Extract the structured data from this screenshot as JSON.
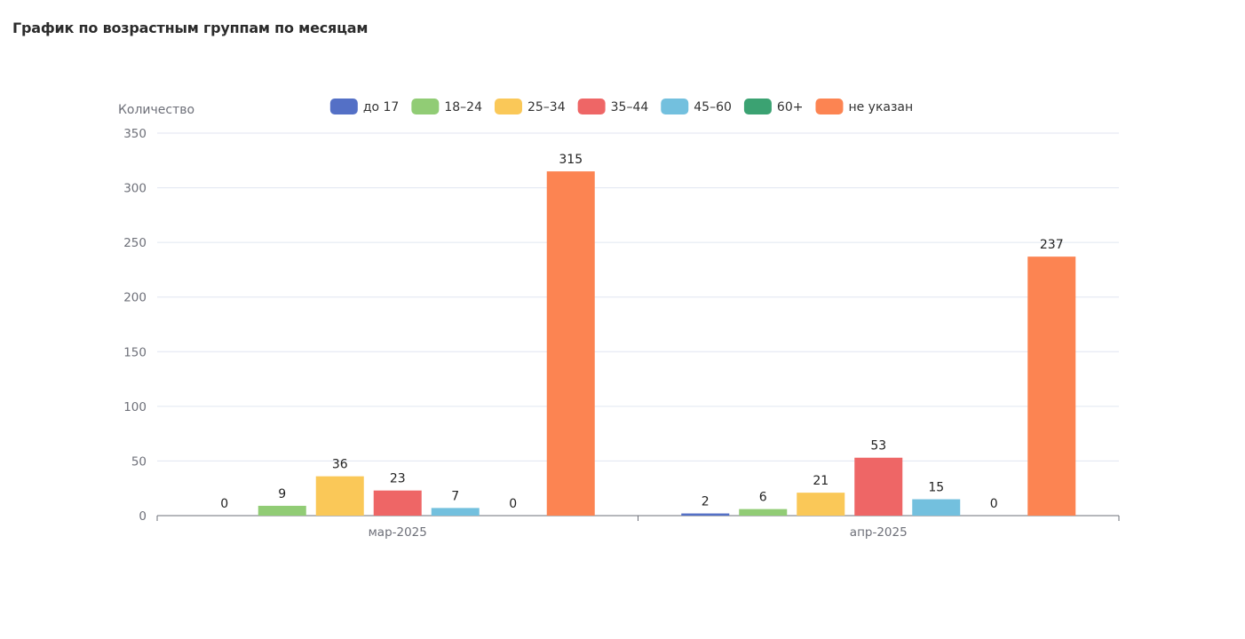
{
  "page": {
    "title": "График по возрастным группам по месяцам"
  },
  "chart_data": {
    "type": "bar",
    "title": "",
    "xlabel": "",
    "ylabel": "Количество",
    "ylim": [
      0,
      350
    ],
    "yticks": [
      0,
      50,
      100,
      150,
      200,
      250,
      300,
      350
    ],
    "grid": true,
    "legend_position": "top",
    "categories": [
      "мар-2025",
      "апр-2025"
    ],
    "series": [
      {
        "name": "до 17",
        "color": "#5470c6",
        "values": [
          0,
          2
        ]
      },
      {
        "name": "18–24",
        "color": "#91cc75",
        "values": [
          9,
          6
        ]
      },
      {
        "name": "25–34",
        "color": "#fac858",
        "values": [
          36,
          21
        ]
      },
      {
        "name": "35–44",
        "color": "#ee6666",
        "values": [
          23,
          53
        ]
      },
      {
        "name": "45–60",
        "color": "#73c0de",
        "values": [
          7,
          15
        ]
      },
      {
        "name": "60+",
        "color": "#3ba272",
        "values": [
          0,
          0
        ]
      },
      {
        "name": "не указан",
        "color": "#fc8452",
        "values": [
          315,
          237
        ]
      }
    ],
    "data_labels": true
  }
}
